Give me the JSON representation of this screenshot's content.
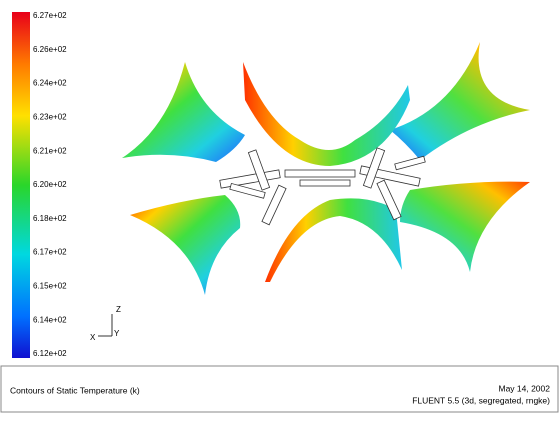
{
  "colorbar": {
    "labels": [
      "6.27e+02",
      "6.26e+02",
      "6.24e+02",
      "6.23e+02",
      "6.21e+02",
      "6.20e+02",
      "6.18e+02",
      "6.17e+02",
      "6.15e+02",
      "6.14e+02",
      "6.12e+02"
    ]
  },
  "axes_triad": {
    "z": "Z",
    "y": "Y",
    "x": "X"
  },
  "footer": {
    "title": "Contours of Static Temperature (k)",
    "date": "May 14, 2002",
    "solver": "FLUENT 5.5 (3d, segregated, rngke)"
  }
}
